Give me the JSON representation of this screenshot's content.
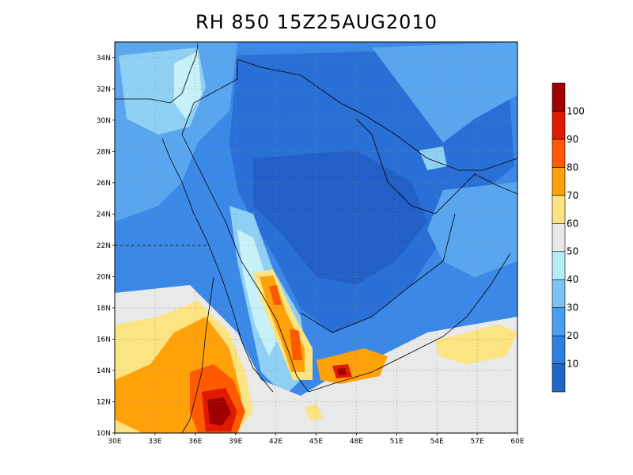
{
  "title": "RH 850 15Z25AUG2010",
  "map": {
    "lon_labels": [
      "30E",
      "33E",
      "36E",
      "39E",
      "42E",
      "45E",
      "48E",
      "51E",
      "54E",
      "57E",
      "60E"
    ],
    "lat_labels": [
      "10N",
      "12N",
      "14N",
      "16N",
      "18N",
      "20N",
      "22N",
      "24N",
      "26N",
      "28N",
      "30N",
      "32N",
      "34N"
    ],
    "lon_range": [
      30,
      60
    ],
    "lat_range": [
      10,
      35
    ],
    "grid": "dotted"
  },
  "colorbar": {
    "labels": [
      "10",
      "20",
      "30",
      "40",
      "50",
      "60",
      "70",
      "80",
      "90",
      "100"
    ],
    "colors": [
      "#1f66c8",
      "#2f7fe0",
      "#4a9ef0",
      "#7cc2f2",
      "#b4ecf6",
      "#e9e9e9",
      "#fde483",
      "#ffa20a",
      "#ff5a00",
      "#e01a00",
      "#a00000"
    ]
  },
  "palette": {
    "very_dry": "#2a6fd6",
    "dry": "#3b88e6",
    "moderate": "#5aa6ee",
    "light": "#8fd0f4",
    "pale": "#c8f0f8",
    "neutral": "#e9e9e9",
    "yellow": "#fde483",
    "orange": "#ffa20a",
    "red_orange": "#ff5a00",
    "red": "#e01a00",
    "dark_red": "#a00000"
  }
}
